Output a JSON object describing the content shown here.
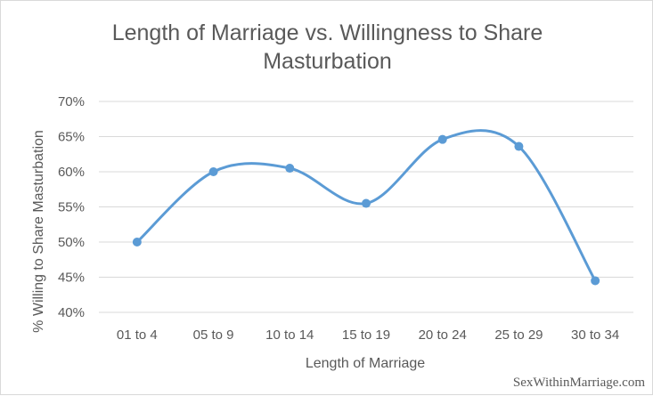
{
  "chart_data": {
    "type": "line",
    "title_lines": [
      "Length of Marriage vs. Willingness to Share",
      "Masturbation"
    ],
    "xlabel": "Length of Marriage",
    "ylabel": "% Willing to Share Masturbation",
    "categories": [
      "01 to 4",
      "05 to 9",
      "10 to 14",
      "15 to 19",
      "20 to 24",
      "25 to 29",
      "30 to 34"
    ],
    "series": [
      {
        "values": [
          50.0,
          60.0,
          60.5,
          55.5,
          64.6,
          63.6,
          44.5
        ]
      }
    ],
    "ylim": [
      40,
      70
    ],
    "yticks": [
      40,
      45,
      50,
      55,
      60,
      65,
      70
    ],
    "ytick_labels": [
      "40%",
      "45%",
      "50%",
      "55%",
      "60%",
      "65%",
      "70%"
    ],
    "grid": true,
    "smooth": true,
    "line_color": "#5b9bd5"
  },
  "watermark": "SexWithinMarriage.com"
}
